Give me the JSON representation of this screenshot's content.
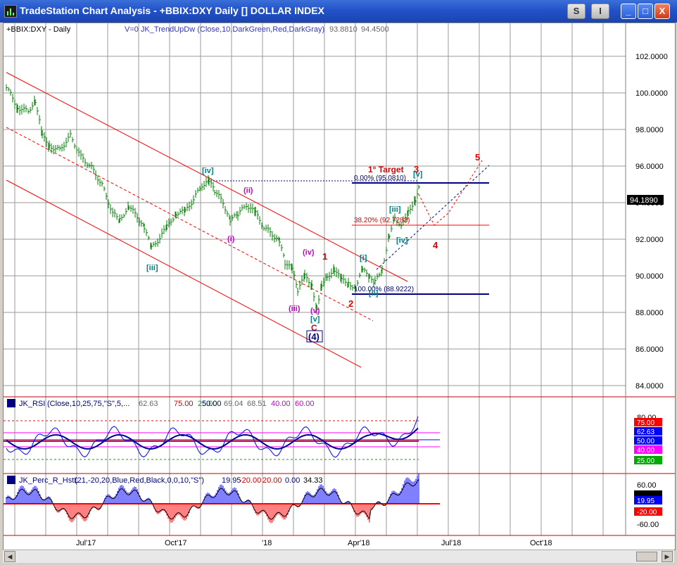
{
  "window": {
    "title": "TradeStation Chart Analysis - +BBIX:DXY Daily [] DOLLAR INDEX",
    "buttons": {
      "s": "S",
      "i": "I",
      "min": "_",
      "max": "□",
      "close": "X"
    }
  },
  "price_panel": {
    "symbol": "+BBIX:DXY - Daily",
    "indicator": "V=0  JK_TrendUpDw (Close,10,DarkGreen,Red,DarkGray)",
    "v1": "93.8810",
    "v2": "94.4500",
    "y_axis_labels": [
      "102.0000",
      "100.0000",
      "98.0000",
      "96.0000",
      "94.0000",
      "92.0000",
      "90.0000",
      "88.0000",
      "86.0000",
      "84.0000"
    ],
    "last_price": "94.1890"
  },
  "annotations": {
    "target": "1° Target",
    "fib0": "0.00% (95.0810)",
    "fib38": "38.20% (92.7283)",
    "fib100": "100.00% (88.9222)",
    "wave_iv_green": "[iv]",
    "wave_iii_green": "[iii]",
    "wave_i_magenta": "(i)",
    "wave_ii_magenta": "(ii)",
    "wave_iii_magenta": "(iii)",
    "wave_iv_magenta": "(iv)",
    "wave_v_magenta": "(v)",
    "wave_v_green": "[v]",
    "wave_c_red": "C",
    "wave_4_blue": "(4)",
    "wave_1_red": "1",
    "wave_2_red": "2",
    "wave_3_red": "3",
    "wave_4_red": "4",
    "wave_5_red": "5",
    "wave_i_green": "[i]",
    "wave_ii_green": "[ii]",
    "wave_iii_green2": "[iii]",
    "wave_iv_green2": "[iv]",
    "wave_v_green2": "[v]"
  },
  "rsi_panel": {
    "name": "JK_RSI",
    "params": "(Close,10,25,75,\"S\",5,...",
    "v_main": "62.63",
    "v75": "75.00",
    "v25": "25.00",
    "v50": "50.00",
    "v69": "69.04",
    "v68": "68.51",
    "v40": "40.00",
    "v60": "60.00",
    "axis": [
      "80.00",
      "75.00",
      "62.63",
      "50.00",
      "40.00",
      "25.00"
    ],
    "colors": {
      "rsi": "#0000ff",
      "bg75": "#ff0000",
      "bg62": "#0000ff",
      "bg50": "#0000ff",
      "bg40": "#ff00ff",
      "bg25": "#00aa00"
    }
  },
  "perc_panel": {
    "name": "JK_Perc_R_HstL",
    "params": "(21,-20,20,Blue,Red,Black,0,0,10,\"S\")",
    "v1": "19.95",
    "v2": "-20.00",
    "v3": "20.00",
    "v4": "0.00",
    "v5": "34.33",
    "axis_top": "60.00",
    "axis_19": "19.95",
    "axis_m20": "-20.00",
    "axis_bottom": "-60.00"
  },
  "x_axis": [
    "Jul'17",
    "Oct'17",
    "'18",
    "Apr'18",
    "Jul'18",
    "Oct'18"
  ],
  "colors": {
    "bars": "#008000",
    "channel": "#ff0000",
    "fib": "#000080",
    "grid": "#808080",
    "wave_green": "#008080",
    "wave_magenta": "#cc00cc",
    "wave_red": "#dd0000"
  }
}
